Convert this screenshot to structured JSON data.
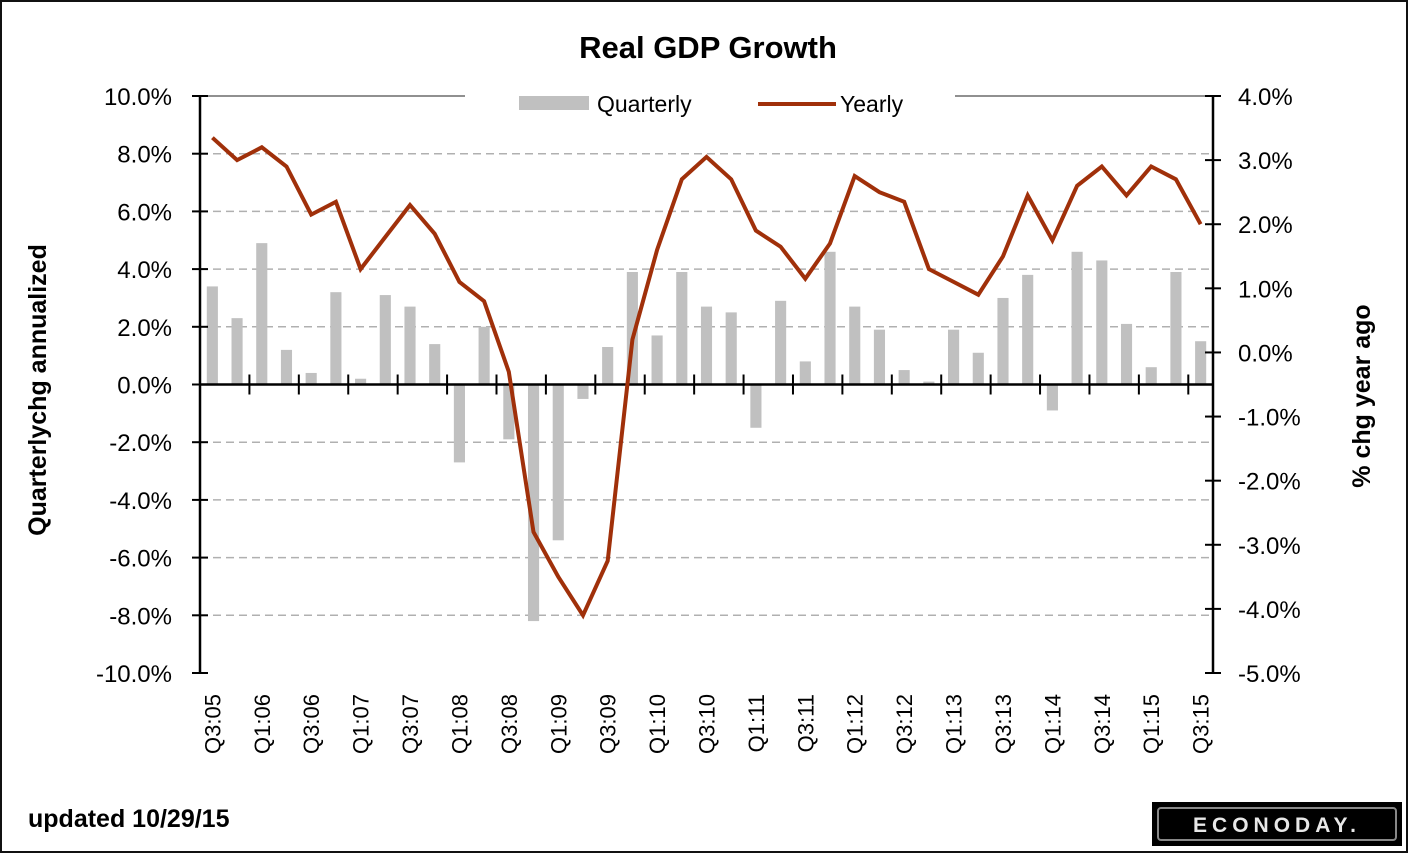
{
  "chart_data": {
    "type": "bar+line",
    "title": "Real GDP Growth",
    "ylabel_left": "Quarterlychg annualized",
    "ylabel_right": "% chg year ago",
    "ylim_left": [
      -10,
      10
    ],
    "ylim_right": [
      -5,
      4
    ],
    "yticks_left": [
      "10.0%",
      "8.0%",
      "6.0%",
      "4.0%",
      "2.0%",
      "0.0%",
      "-2.0%",
      "-4.0%",
      "-6.0%",
      "-8.0%",
      "-10.0%"
    ],
    "yticks_right": [
      "4.0%",
      "3.0%",
      "2.0%",
      "1.0%",
      "0.0%",
      "-1.0%",
      "-2.0%",
      "-3.0%",
      "-4.0%",
      "-5.0%"
    ],
    "xtick_labels": [
      "Q3:05",
      "Q1:06",
      "Q3:06",
      "Q1:07",
      "Q3:07",
      "Q1:08",
      "Q3:08",
      "Q1:09",
      "Q3:09",
      "Q1:10",
      "Q3:10",
      "Q1:11",
      "Q3:11",
      "Q1:12",
      "Q3:12",
      "Q1:13",
      "Q3:13",
      "Q1:14",
      "Q3:14",
      "Q1:15",
      "Q3:15"
    ],
    "categories": [
      "Q3:05",
      "Q4:05",
      "Q1:06",
      "Q2:06",
      "Q3:06",
      "Q4:06",
      "Q1:07",
      "Q2:07",
      "Q3:07",
      "Q4:07",
      "Q1:08",
      "Q2:08",
      "Q3:08",
      "Q4:08",
      "Q1:09",
      "Q2:09",
      "Q3:09",
      "Q4:09",
      "Q1:10",
      "Q2:10",
      "Q3:10",
      "Q4:10",
      "Q1:11",
      "Q2:11",
      "Q3:11",
      "Q4:11",
      "Q1:12",
      "Q2:12",
      "Q3:12",
      "Q4:12",
      "Q1:13",
      "Q2:13",
      "Q3:13",
      "Q4:13",
      "Q1:14",
      "Q2:14",
      "Q3:14",
      "Q4:14",
      "Q1:15",
      "Q2:15",
      "Q3:15"
    ],
    "series": [
      {
        "name": "Quarterly",
        "type": "bar",
        "axis": "left",
        "color": "#c0c0c0",
        "values": [
          3.4,
          2.3,
          4.9,
          1.2,
          0.4,
          3.2,
          0.2,
          3.1,
          2.7,
          1.4,
          -2.7,
          2.0,
          -1.9,
          -8.2,
          -5.4,
          -0.5,
          1.3,
          3.9,
          1.7,
          3.9,
          2.7,
          2.5,
          -1.5,
          2.9,
          0.8,
          4.6,
          2.7,
          1.9,
          0.5,
          0.1,
          1.9,
          1.1,
          3.0,
          3.8,
          -0.9,
          4.6,
          4.3,
          2.1,
          0.6,
          3.9,
          1.5
        ]
      },
      {
        "name": "Yearly",
        "type": "line",
        "axis": "right",
        "color": "#a0300a",
        "values": [
          3.35,
          3.0,
          3.2,
          2.9,
          2.15,
          2.35,
          1.3,
          1.8,
          2.3,
          1.85,
          1.1,
          0.8,
          -0.3,
          -2.8,
          -3.5,
          -4.1,
          -3.25,
          0.2,
          1.6,
          2.7,
          3.05,
          2.7,
          1.9,
          1.65,
          1.15,
          1.7,
          2.75,
          2.5,
          2.35,
          1.3,
          1.1,
          0.9,
          1.5,
          2.45,
          1.75,
          2.6,
          2.9,
          2.45,
          2.9,
          2.7,
          2.0
        ]
      }
    ],
    "legend": "top-center",
    "grid": true
  },
  "footer": {
    "updated": "updated 10/29/15",
    "logo": "ECONODAY."
  }
}
